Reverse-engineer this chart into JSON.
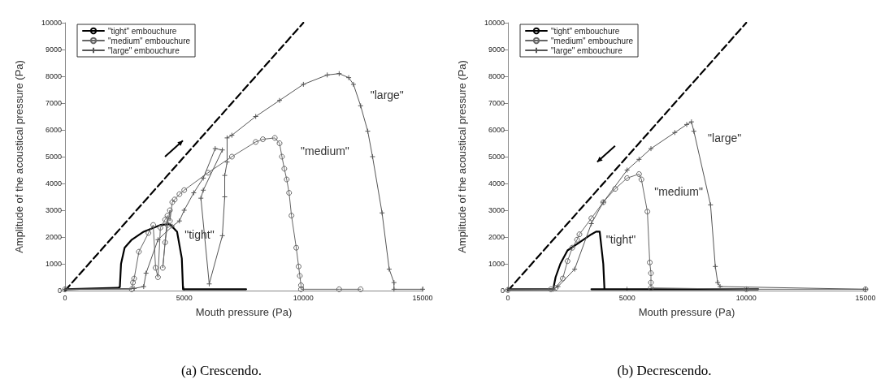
{
  "chart_data": [
    {
      "type": "line",
      "title": "(a) Crescendo.",
      "xlabel": "Mouth pressure (Pa)",
      "ylabel": "Amplitude of the acoustical pressure (Pa)",
      "xlim": [
        0,
        15000
      ],
      "xticks": [
        0,
        5000,
        10000,
        15000
      ],
      "ylim": [
        0,
        10000
      ],
      "yticks": [
        0,
        1000,
        2000,
        3000,
        4000,
        5000,
        6000,
        7000,
        8000,
        9000,
        10000
      ],
      "grid": false,
      "legend": "top left",
      "annotations": [
        "\"tight\"",
        "\"medium\"",
        "\"large\""
      ],
      "series": [
        {
          "name": "\"tight\" embouchure",
          "color": "#000000",
          "marker": "none",
          "line_style": "solid",
          "x": [
            0,
            2200,
            2300,
            2350,
            2500,
            2800,
            3300,
            4000,
            4400,
            4700,
            4900,
            4950,
            7600
          ],
          "values": [
            50,
            100,
            130,
            1000,
            1600,
            1900,
            2200,
            2450,
            2480,
            2200,
            1200,
            50,
            50
          ]
        },
        {
          "name": "\"medium\" embouchure",
          "color": "#666666",
          "marker": "circle",
          "line_style": "solid",
          "x": [
            0,
            2800,
            2850,
            2900,
            3100,
            3500,
            3700,
            3800,
            3900,
            4000,
            4200,
            4300,
            4100,
            4200,
            4300,
            4400,
            4400,
            4500,
            4600,
            4800,
            5000,
            6000,
            7000,
            8000,
            8300,
            8800,
            9000,
            9100,
            9200,
            9300,
            9400,
            9500,
            9700,
            9800,
            9850,
            9900,
            9900,
            11500,
            12400
          ],
          "values": [
            50,
            50,
            300,
            450,
            1450,
            2150,
            2450,
            850,
            500,
            2350,
            2650,
            2800,
            850,
            1800,
            2450,
            3000,
            2600,
            3300,
            3400,
            3600,
            3750,
            4400,
            5000,
            5550,
            5650,
            5700,
            5500,
            5000,
            4550,
            4150,
            3650,
            2800,
            1600,
            900,
            550,
            200,
            50,
            50,
            50
          ]
        },
        {
          "name": "\"large\" embouchure",
          "color": "#555555",
          "marker": "cross",
          "line_style": "solid",
          "x": [
            0,
            2900,
            3300,
            3400,
            3900,
            4500,
            4800,
            5000,
            5400,
            5800,
            6300,
            6600,
            5800,
            5700,
            6050,
            6600,
            6700,
            6700,
            6800,
            6800,
            7000,
            8000,
            9000,
            10000,
            11000,
            11500,
            11900,
            12100,
            12400,
            12700,
            12900,
            13300,
            13600,
            13800,
            13800,
            15000
          ],
          "values": [
            50,
            80,
            150,
            650,
            1900,
            2400,
            2600,
            3000,
            3650,
            4200,
            5300,
            5250,
            3750,
            3450,
            250,
            2050,
            3500,
            4300,
            4800,
            5700,
            5800,
            6500,
            7100,
            7700,
            8050,
            8100,
            7950,
            7700,
            6900,
            5950,
            5000,
            2900,
            800,
            300,
            50,
            50
          ]
        },
        {
          "type": "line",
          "color": "#000000",
          "marker": "none",
          "line_style": "dashed",
          "x": [
            0,
            10000
          ],
          "values": [
            0,
            10000
          ]
        }
      ]
    },
    {
      "type": "line",
      "title": "(b) Decrescendo.",
      "xlabel": "Mouth pressure (Pa)",
      "ylabel": "Amplitude of the acoustical pressure (Pa)",
      "xlim": [
        0,
        15000
      ],
      "xticks": [
        0,
        5000,
        10000,
        15000
      ],
      "ylim": [
        0,
        10000
      ],
      "yticks": [
        0,
        1000,
        2000,
        3000,
        4000,
        5000,
        6000,
        7000,
        8000,
        9000,
        10000
      ],
      "grid": false,
      "legend": "top left",
      "annotations": [
        "\"tight\"",
        "\"medium\"",
        "\"large\""
      ],
      "series": [
        {
          "name": "\"tight\" embouchure",
          "color": "#000000",
          "marker": "none",
          "line_style": "solid",
          "x": [
            0,
            1900,
            2000,
            2200,
            2500,
            3000,
            3500,
            3700,
            3850,
            4000,
            4050,
            3500,
            10500
          ],
          "values": [
            50,
            50,
            500,
            1000,
            1500,
            1800,
            2100,
            2200,
            2200,
            1000,
            50,
            50,
            50
          ]
        },
        {
          "name": "\"medium\" embouchure",
          "color": "#666666",
          "marker": "circle",
          "line_style": "solid",
          "x": [
            0,
            1800,
            2000,
            2300,
            2500,
            2700,
            2900,
            3000,
            3500,
            4000,
            4500,
            5000,
            5500,
            5600,
            5850,
            5950,
            6000,
            6000,
            6000,
            10000,
            15000
          ],
          "values": [
            20,
            50,
            100,
            450,
            1100,
            1600,
            1900,
            2100,
            2700,
            3300,
            3800,
            4200,
            4350,
            4150,
            2950,
            1050,
            650,
            300,
            100,
            50,
            50
          ]
        },
        {
          "name": "\"large\" embouchure",
          "color": "#555555",
          "marker": "cross",
          "line_style": "solid",
          "x": [
            0,
            1900,
            2100,
            2800,
            3500,
            4000,
            5000,
            5500,
            6000,
            7000,
            7500,
            7700,
            7800,
            8500,
            8700,
            8800,
            8900,
            15000
          ],
          "values": [
            50,
            50,
            150,
            800,
            2500,
            3300,
            4500,
            4900,
            5300,
            5900,
            6200,
            6300,
            5950,
            3200,
            900,
            300,
            150,
            50
          ]
        },
        {
          "type": "line",
          "color": "#000000",
          "marker": "none",
          "line_style": "dashed",
          "x": [
            0,
            10000
          ],
          "values": [
            0,
            10000
          ]
        }
      ]
    }
  ]
}
